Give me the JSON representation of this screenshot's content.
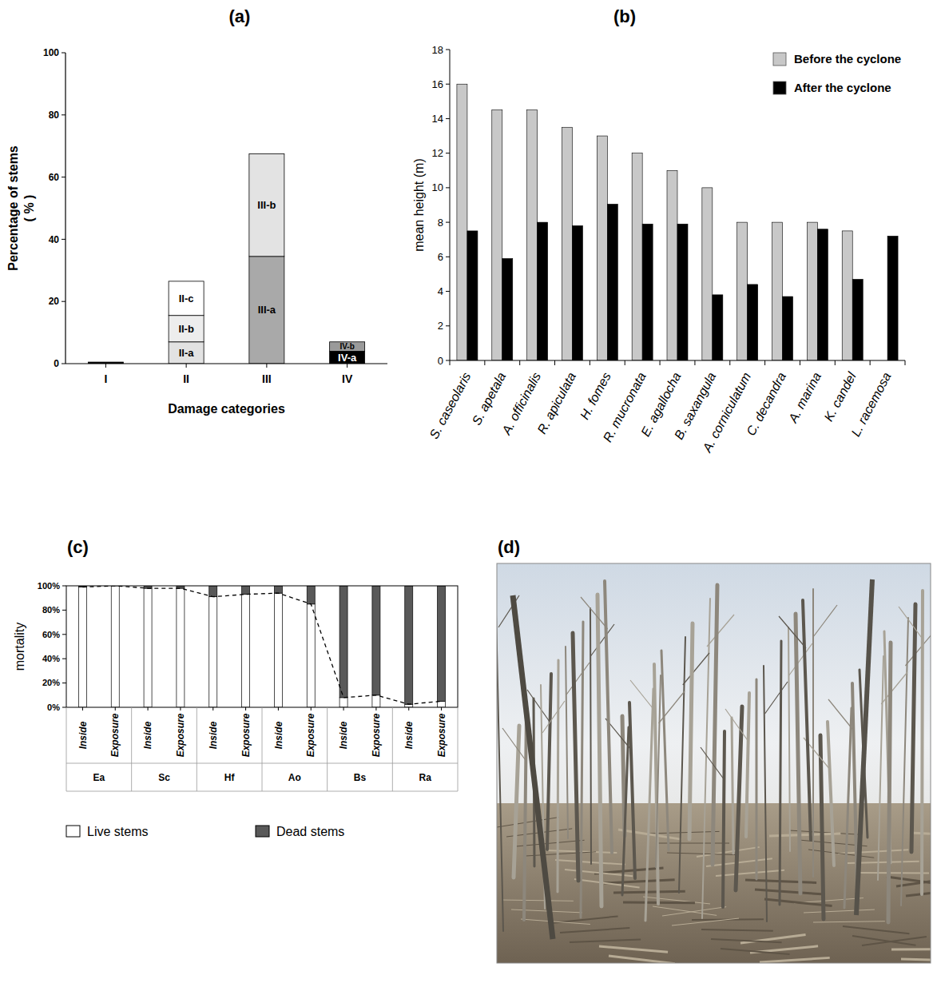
{
  "chart_data": [
    {
      "type": "bar",
      "stacked": true,
      "title": "(a)",
      "x_label": "Damage categories",
      "y_label": [
        "Percentage of stems",
        "( % )"
      ],
      "categories": [
        "I",
        "II",
        "III",
        "IV"
      ],
      "ylim": [
        0,
        100
      ],
      "yticks": [
        0,
        20,
        40,
        60,
        80,
        100
      ],
      "series": [
        {
          "values": [
            0.5,
            7,
            34.5,
            4
          ],
          "labels": [
            null,
            "II-a",
            "III-a",
            "IV-a"
          ],
          "colors": [
            "#000000",
            "#e2e2e2",
            "#a9a9a9",
            "#000000"
          ]
        },
        {
          "values": [
            null,
            8.5,
            33,
            3
          ],
          "labels": [
            null,
            "II-b",
            "III-b",
            "IV-b"
          ],
          "colors": [
            null,
            "#ededed",
            "#e3e3e3",
            "#9a9a9a"
          ]
        },
        {
          "values": [
            null,
            11,
            null,
            null
          ],
          "labels": [
            null,
            "II-c",
            null,
            null
          ],
          "colors": [
            null,
            "#ffffff",
            null,
            null
          ]
        }
      ]
    },
    {
      "type": "bar",
      "title": "(b)",
      "y_label": "mean height (m)",
      "categories": [
        "S. caseolaris",
        "S. apetala",
        "A. officinalis",
        "R. apiculata",
        "H. fomes",
        "R. mucronata",
        "E. agallocha",
        "B. saxangula",
        "A. corniculatum",
        "C. decandra",
        "A. marina",
        "K. candel",
        "L. racemosa"
      ],
      "ylim": [
        0,
        18
      ],
      "yticks": [
        0,
        2,
        4,
        6,
        8,
        10,
        12,
        14,
        16,
        18
      ],
      "legend": "top-right",
      "series": [
        {
          "name": "Before the cyclone",
          "color": "#c8c8c8",
          "values": [
            16,
            14.5,
            14.5,
            13.5,
            13,
            12,
            11,
            10,
            8,
            8,
            8,
            7.5,
            null
          ]
        },
        {
          "name": "After the cyclone",
          "color": "#000000",
          "values": [
            7.5,
            5.9,
            8,
            7.8,
            9.05,
            7.9,
            7.9,
            3.8,
            4.4,
            3.7,
            7.6,
            4.7,
            7.2
          ]
        }
      ]
    },
    {
      "type": "bar",
      "stacked": true,
      "title": "(c)",
      "y_label": "mortality",
      "categories": [
        "Inside",
        "Exposure",
        "Inside",
        "Exposure",
        "Inside",
        "Exposure",
        "Inside",
        "Exposure",
        "Inside",
        "Exposure",
        "Inside",
        "Exposure"
      ],
      "groups": [
        "Ea",
        "Sc",
        "Hf",
        "Ao",
        "Bs",
        "Ra"
      ],
      "ylim": [
        0,
        100
      ],
      "yticks": [
        {
          "value": 0,
          "label": "0%"
        },
        {
          "value": 20,
          "label": "20%"
        },
        {
          "value": 40,
          "label": "40%"
        },
        {
          "value": 60,
          "label": "60%"
        },
        {
          "value": 80,
          "label": "80%"
        },
        {
          "value": 100,
          "label": "100%"
        }
      ],
      "legend": "bottom-left",
      "series": [
        {
          "name": "Live stems",
          "color": "#ffffff",
          "line_style": "dashed",
          "values": [
            99,
            100,
            98,
            98,
            91,
            93,
            94,
            85,
            8,
            10,
            2.5,
            5
          ]
        },
        {
          "name": "Dead stems",
          "color": "#595959",
          "values": [
            1,
            0,
            2,
            2,
            9,
            7,
            6,
            15,
            92,
            90,
            97.5,
            95
          ]
        }
      ]
    }
  ],
  "image": {
    "title": "(d)"
  }
}
